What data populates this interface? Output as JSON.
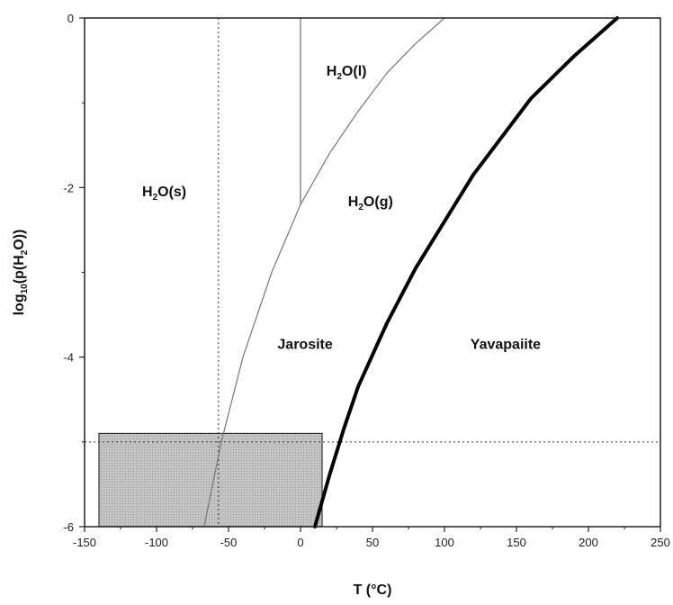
{
  "chart_data": {
    "type": "line",
    "xlabel": "T (°C)",
    "ylabel": {
      "prefix": "log",
      "sub1": "10",
      "mid": "(p(H",
      "sub2": "2",
      "suffix": "O))"
    },
    "xlim": [
      -150,
      250
    ],
    "ylim": [
      -6,
      0
    ],
    "x_ticks": [
      "-150",
      "-100",
      "-50",
      "0",
      "50",
      "100",
      "150",
      "200",
      "250"
    ],
    "y_ticks": [
      "0",
      "-2",
      "-4",
      "-6"
    ],
    "grid": false,
    "series": [
      {
        "style": "thin-curve",
        "x": [
          -67,
          -55,
          -40,
          -20,
          0,
          20,
          40,
          60,
          80,
          100
        ],
        "y": [
          -6,
          -5.0,
          -4.0,
          -3.0,
          -2.2,
          -1.6,
          -1.1,
          -0.65,
          -0.3,
          0
        ]
      },
      {
        "style": "thick-curve",
        "x": [
          10,
          20,
          30,
          40,
          60,
          80,
          100,
          120,
          140,
          160,
          190,
          220
        ],
        "y": [
          -6,
          -5.4,
          -4.85,
          -4.35,
          -3.6,
          -2.95,
          -2.4,
          -1.85,
          -1.4,
          -0.95,
          -0.45,
          0
        ]
      },
      {
        "style": "thin-vertical",
        "x": [
          0,
          0
        ],
        "y": [
          -2.2,
          0
        ]
      }
    ],
    "reference_lines": {
      "vertical_x": -57,
      "horizontal_y": -5
    },
    "shaded_box": {
      "x": [
        -140,
        15
      ],
      "y": [
        -6,
        -4.9
      ]
    },
    "region_labels": [
      {
        "id": "h2o-liquid",
        "pre": "H",
        "sub": "2",
        "post": "O(l)",
        "x": 18,
        "y": -0.68
      },
      {
        "id": "h2o-solid",
        "pre": "H",
        "sub": "2",
        "post": "O(s)",
        "x": -110,
        "y": -2.1
      },
      {
        "id": "h2o-gas",
        "pre": "H",
        "sub": "2",
        "post": "O(g)",
        "x": 33,
        "y": -2.22
      },
      {
        "id": "jarosite",
        "pre": "Jarosite",
        "sub": "",
        "post": "",
        "x": -16,
        "y": -3.9
      },
      {
        "id": "yavapaiite",
        "pre": "Yavapaiite",
        "sub": "",
        "post": "",
        "x": 118,
        "y": -3.9
      }
    ]
  }
}
